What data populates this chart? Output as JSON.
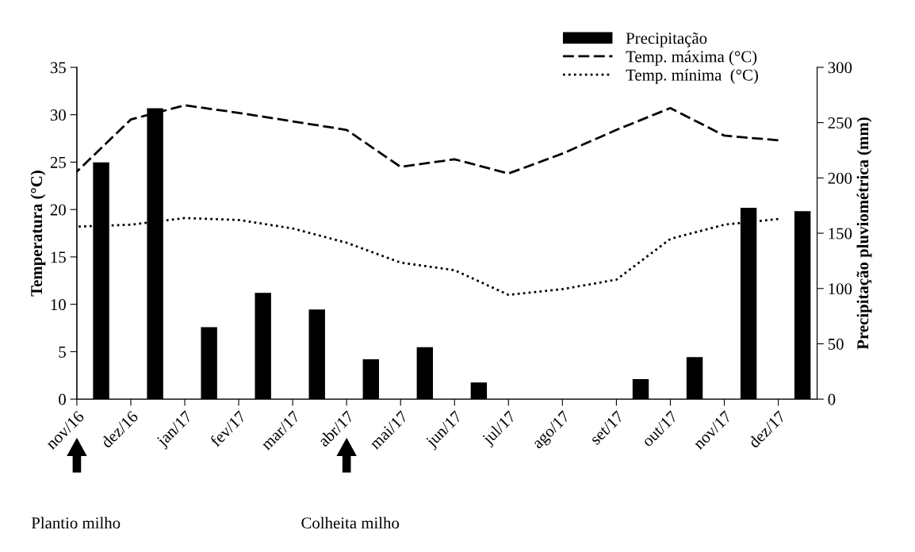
{
  "chart_data": {
    "type": "line",
    "ylabel": "Temperatura (°C)",
    "y2label": "Precipitação pluviométrica (mm)",
    "categories": [
      "nov/16",
      "dez/16",
      "jan/17",
      "fev/17",
      "mar/17",
      "abr/17",
      "mai/17",
      "jun/17",
      "jul/17",
      "ago/17",
      "set/17",
      "out/17",
      "nov/17",
      "dez/17"
    ],
    "series": [
      {
        "name": "Precipitação",
        "type": "bar",
        "axis": "y2",
        "color": "#000000",
        "values": [
          214,
          263,
          65,
          96,
          81,
          36,
          47,
          15,
          0,
          0,
          18,
          38,
          173,
          170
        ]
      },
      {
        "name": "Temp. máxima (°C)",
        "line_style": "dashed",
        "color": "#000000",
        "values": [
          24,
          29.5,
          31,
          30.2,
          29.3,
          28.4,
          24.5,
          25.3,
          23.8,
          25.9,
          28.4,
          30.7,
          27.8,
          27.3
        ]
      },
      {
        "name": "Temp. mínima  (°C)",
        "line_style": "dotted",
        "color": "#000000",
        "values": [
          18.2,
          18.4,
          19.1,
          18.9,
          18,
          16.5,
          14.4,
          13.6,
          11,
          11.6,
          12.6,
          16.9,
          18.4,
          19
        ]
      }
    ],
    "ylim": [
      0,
      35
    ],
    "yticks": [
      0,
      5,
      10,
      15,
      20,
      25,
      30,
      35
    ],
    "y2lim": [
      0,
      300
    ],
    "y2ticks": [
      0,
      50,
      100,
      150,
      200,
      250,
      300
    ],
    "grid": false,
    "legend": "top right",
    "marker": "none",
    "annotations": [
      "Plantio milho",
      "Colheita milho"
    ]
  }
}
